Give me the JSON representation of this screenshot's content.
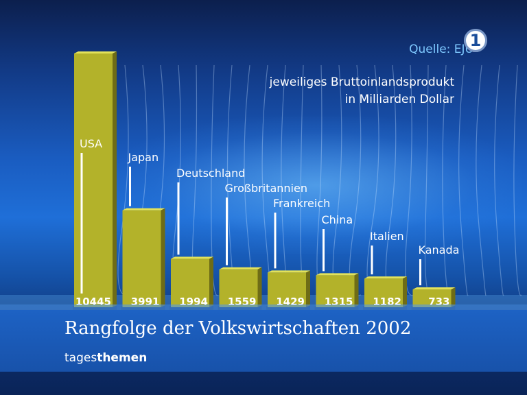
{
  "header": {
    "source": "Quelle: EJU",
    "logo_text": "1",
    "subtitle_line1": "jeweiliges Bruttoinlandsprodukt",
    "subtitle_line2": "in Milliarden Dollar"
  },
  "footer": {
    "title": "Rangfolge der Volkswirtschaften 2002",
    "brand_part1": "tages",
    "brand_part2": "themen"
  },
  "colors": {
    "bar": "#b3b22a",
    "bar_top": "#e3e25a",
    "background": "#1a5cc0",
    "source_text": "#7ec8ff"
  },
  "chart_data": {
    "type": "bar",
    "title": "Rangfolge der Volkswirtschaften 2002",
    "subtitle": "jeweiliges Bruttoinlandsprodukt in Milliarden Dollar",
    "categories": [
      "USA",
      "Japan",
      "Deutschland",
      "Großbritannien",
      "Frankreich",
      "China",
      "Italien",
      "Kanada"
    ],
    "values": [
      10445,
      3991,
      1994,
      1559,
      1429,
      1315,
      1182,
      733
    ],
    "xlabel": "",
    "ylabel": "",
    "ylim": [
      0,
      10445
    ],
    "grid": false,
    "legend": "none"
  }
}
